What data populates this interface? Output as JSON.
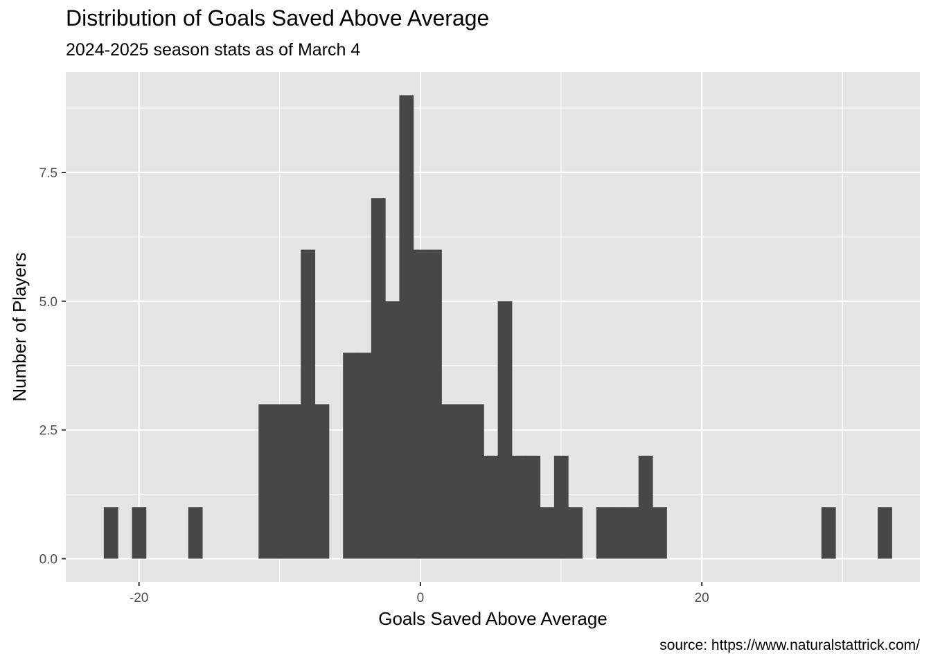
{
  "chart_data": {
    "type": "bar",
    "title": "Distribution of Goals Saved Above Average",
    "subtitle": "2024-2025 season stats as of March 4",
    "caption": "source: https://www.naturalstattrick.com/",
    "xlabel": "Goals Saved Above Average",
    "ylabel": "Number of Players",
    "xlim": [
      -25.2,
      35.5
    ],
    "ylim": [
      -0.45,
      9.45
    ],
    "x_ticks": [
      -20,
      0,
      20
    ],
    "x_tick_labels": [
      "-20",
      "0",
      "20"
    ],
    "y_ticks": [
      0,
      2.5,
      5,
      7.5
    ],
    "y_tick_labels": [
      "0.0",
      "2.5",
      "5.0",
      "7.5"
    ],
    "bin_width": 1,
    "bin_centers": [
      -22,
      -20,
      -16,
      -11,
      -10,
      -9,
      -8,
      -7,
      -5,
      -4,
      -3,
      -2,
      -1,
      0,
      1,
      2,
      3,
      4,
      5,
      6,
      7,
      8,
      9,
      10,
      11,
      13,
      14,
      15,
      16,
      17,
      29,
      33
    ],
    "values": [
      1,
      1,
      1,
      3,
      3,
      3,
      6,
      3,
      4,
      4,
      7,
      5,
      9,
      6,
      6,
      3,
      3,
      3,
      2,
      5,
      2,
      2,
      1,
      2,
      1,
      1,
      1,
      1,
      2,
      1,
      1,
      1
    ],
    "grid": true,
    "colors": {
      "bar": "#474747",
      "panel": "#e5e5e5",
      "grid": "#ffffff"
    }
  }
}
